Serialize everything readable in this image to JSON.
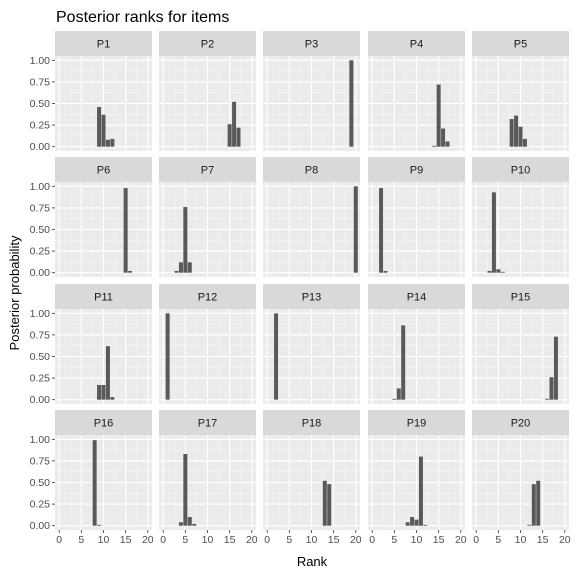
{
  "chart_data": {
    "type": "bar",
    "title": "Posterior ranks for items",
    "xlabel": "Rank",
    "ylabel": "Posterior probability",
    "xlim": [
      0,
      20
    ],
    "ylim": [
      0,
      1
    ],
    "x_ticks": [
      "0",
      "5",
      "10",
      "15",
      "20"
    ],
    "y_ticks": [
      "0.00",
      "0.25",
      "0.50",
      "0.75",
      "1.00"
    ],
    "layout": "facet grid, 4 rows x 5 columns",
    "grid": true,
    "bar_color": "#595959",
    "panel_background": "#ebebeb",
    "strip_background": "#d9d9d9",
    "panels": [
      {
        "name": "P1",
        "bars": [
          {
            "rank": 9,
            "p": 0.46
          },
          {
            "rank": 10,
            "p": 0.37
          },
          {
            "rank": 11,
            "p": 0.08
          },
          {
            "rank": 12,
            "p": 0.09
          }
        ]
      },
      {
        "name": "P2",
        "bars": [
          {
            "rank": 15,
            "p": 0.26
          },
          {
            "rank": 16,
            "p": 0.52
          },
          {
            "rank": 17,
            "p": 0.22
          }
        ]
      },
      {
        "name": "P3",
        "bars": [
          {
            "rank": 19,
            "p": 1.0
          }
        ]
      },
      {
        "name": "P4",
        "bars": [
          {
            "rank": 14,
            "p": 0.01
          },
          {
            "rank": 15,
            "p": 0.72
          },
          {
            "rank": 16,
            "p": 0.21
          },
          {
            "rank": 17,
            "p": 0.06
          }
        ]
      },
      {
        "name": "P5",
        "bars": [
          {
            "rank": 8,
            "p": 0.32
          },
          {
            "rank": 9,
            "p": 0.36
          },
          {
            "rank": 10,
            "p": 0.23
          },
          {
            "rank": 11,
            "p": 0.09
          }
        ]
      },
      {
        "name": "P6",
        "bars": [
          {
            "rank": 15,
            "p": 0.98
          },
          {
            "rank": 16,
            "p": 0.02
          }
        ]
      },
      {
        "name": "P7",
        "bars": [
          {
            "rank": 3,
            "p": 0.02
          },
          {
            "rank": 4,
            "p": 0.12
          },
          {
            "rank": 5,
            "p": 0.76
          },
          {
            "rank": 6,
            "p": 0.12
          }
        ]
      },
      {
        "name": "P8",
        "bars": [
          {
            "rank": 20,
            "p": 1.0
          }
        ]
      },
      {
        "name": "P9",
        "bars": [
          {
            "rank": 2,
            "p": 0.98
          },
          {
            "rank": 3,
            "p": 0.02
          }
        ]
      },
      {
        "name": "P10",
        "bars": [
          {
            "rank": 3,
            "p": 0.02
          },
          {
            "rank": 4,
            "p": 0.93
          },
          {
            "rank": 5,
            "p": 0.04
          },
          {
            "rank": 6,
            "p": 0.01
          }
        ]
      },
      {
        "name": "P11",
        "bars": [
          {
            "rank": 9,
            "p": 0.17
          },
          {
            "rank": 10,
            "p": 0.17
          },
          {
            "rank": 11,
            "p": 0.62
          },
          {
            "rank": 12,
            "p": 0.03
          }
        ]
      },
      {
        "name": "P12",
        "bars": [
          {
            "rank": 1,
            "p": 1.0
          }
        ]
      },
      {
        "name": "P13",
        "bars": [
          {
            "rank": 2,
            "p": 1.0
          }
        ]
      },
      {
        "name": "P14",
        "bars": [
          {
            "rank": 5,
            "p": 0.01
          },
          {
            "rank": 6,
            "p": 0.13
          },
          {
            "rank": 7,
            "p": 0.86
          }
        ]
      },
      {
        "name": "P15",
        "bars": [
          {
            "rank": 16,
            "p": 0.01
          },
          {
            "rank": 17,
            "p": 0.26
          },
          {
            "rank": 18,
            "p": 0.73
          }
        ]
      },
      {
        "name": "P16",
        "bars": [
          {
            "rank": 8,
            "p": 0.99
          },
          {
            "rank": 9,
            "p": 0.01
          }
        ]
      },
      {
        "name": "P17",
        "bars": [
          {
            "rank": 4,
            "p": 0.04
          },
          {
            "rank": 5,
            "p": 0.83
          },
          {
            "rank": 6,
            "p": 0.1
          },
          {
            "rank": 7,
            "p": 0.02
          }
        ]
      },
      {
        "name": "P18",
        "bars": [
          {
            "rank": 13,
            "p": 0.52
          },
          {
            "rank": 14,
            "p": 0.48
          }
        ]
      },
      {
        "name": "P19",
        "bars": [
          {
            "rank": 8,
            "p": 0.04
          },
          {
            "rank": 9,
            "p": 0.1
          },
          {
            "rank": 10,
            "p": 0.07
          },
          {
            "rank": 11,
            "p": 0.8
          },
          {
            "rank": 12,
            "p": 0.01
          }
        ]
      },
      {
        "name": "P20",
        "bars": [
          {
            "rank": 12,
            "p": 0.01
          },
          {
            "rank": 13,
            "p": 0.48
          },
          {
            "rank": 14,
            "p": 0.52
          }
        ]
      }
    ]
  }
}
